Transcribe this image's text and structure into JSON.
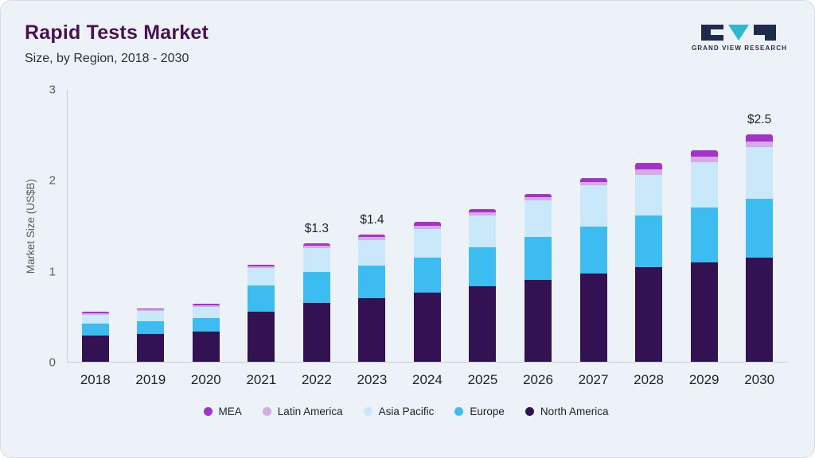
{
  "theme": {
    "card_bg": "#edf2f8",
    "card_border": "#d7dde6",
    "title_color": "#4a1150",
    "subtitle_color": "#2e2e44",
    "axis_color": "#c7cfd9",
    "tick_color": "#5b5b6b",
    "label_color": "#22222e",
    "logo_navy": "#1e2b4d",
    "logo_teal": "#2fb9cf"
  },
  "header": {
    "logo_text": "GRAND VIEW RESEARCH"
  },
  "chart_data": {
    "type": "bar",
    "stacked": true,
    "title": "Rapid Tests Market",
    "subtitle": "Size, by Region, 2018 - 2030",
    "ylabel": "Market Size (US$B)",
    "xlabel": "",
    "ylim": [
      0,
      3
    ],
    "yticks": [
      0,
      1,
      2,
      3
    ],
    "grid": false,
    "legend_position": "bottom",
    "categories": [
      "2018",
      "2019",
      "2020",
      "2021",
      "2022",
      "2023",
      "2024",
      "2025",
      "2026",
      "2027",
      "2028",
      "2029",
      "2030"
    ],
    "series": [
      {
        "name": "North America",
        "color": "#321253",
        "values": [
          0.29,
          0.31,
          0.33,
          0.55,
          0.65,
          0.7,
          0.76,
          0.83,
          0.9,
          0.97,
          1.04,
          1.09,
          1.15
        ]
      },
      {
        "name": "Europe",
        "color": "#3dbcf1",
        "values": [
          0.13,
          0.14,
          0.15,
          0.29,
          0.34,
          0.36,
          0.39,
          0.43,
          0.47,
          0.52,
          0.57,
          0.61,
          0.64
        ]
      },
      {
        "name": "Asia Pacific",
        "color": "#c9e9fa",
        "values": [
          0.1,
          0.11,
          0.12,
          0.19,
          0.26,
          0.28,
          0.31,
          0.35,
          0.41,
          0.45,
          0.45,
          0.5,
          0.57
        ]
      },
      {
        "name": "Latin America",
        "color": "#d9a8e6",
        "values": [
          0.015,
          0.015,
          0.02,
          0.02,
          0.025,
          0.03,
          0.04,
          0.035,
          0.035,
          0.04,
          0.06,
          0.06,
          0.06
        ]
      },
      {
        "name": "MEA",
        "color": "#a434c9",
        "values": [
          0.015,
          0.015,
          0.02,
          0.02,
          0.025,
          0.03,
          0.04,
          0.035,
          0.035,
          0.04,
          0.07,
          0.07,
          0.08
        ]
      }
    ],
    "bar_labels": [
      "",
      "",
      "",
      "",
      "$1.3",
      "$1.4",
      "",
      "",
      "",
      "",
      "",
      "",
      "$2.5"
    ],
    "legend_order": [
      "MEA",
      "Latin America",
      "Asia Pacific",
      "Europe",
      "North America"
    ]
  }
}
